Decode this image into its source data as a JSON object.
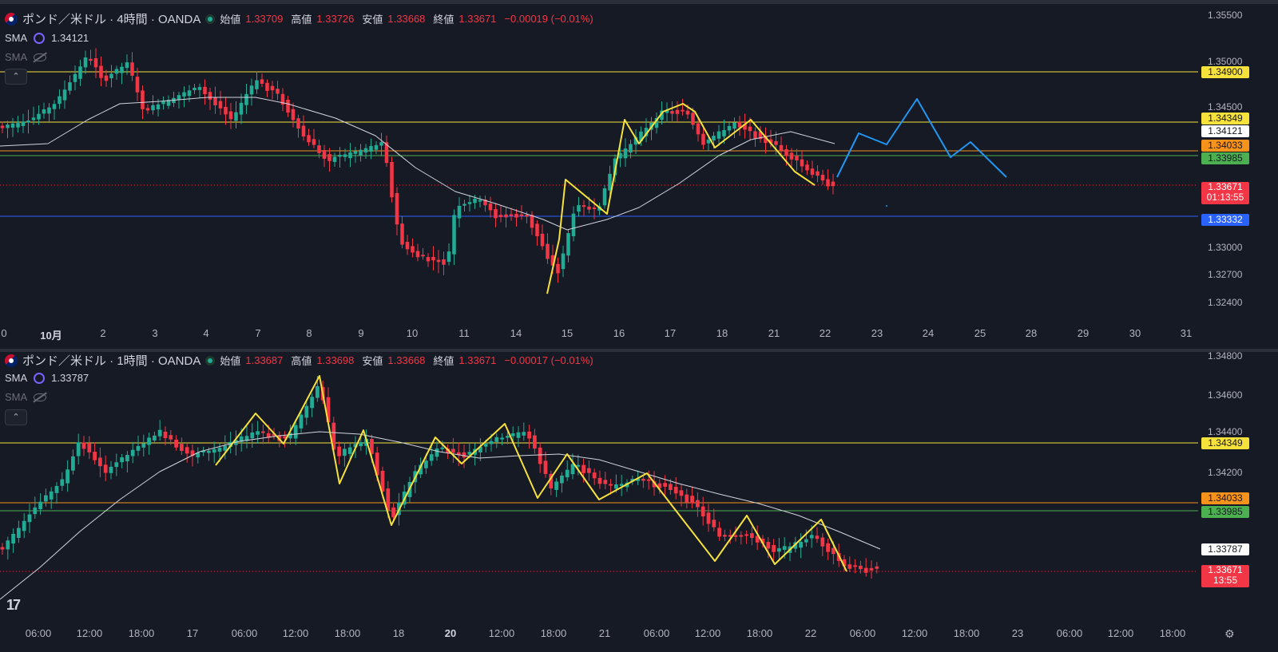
{
  "top": {
    "title": "ポンド／米ドル · 4時間 · OANDA",
    "ohlc": [
      {
        "k": "始値",
        "v": "1.33709"
      },
      {
        "k": "高値",
        "v": "1.33726"
      },
      {
        "k": "安値",
        "v": "1.33668"
      },
      {
        "k": "終値",
        "v": "1.33671"
      }
    ],
    "change": "−0.00019 (−0.01%)",
    "sma1_label": "SMA",
    "sma1_value": "1.34121",
    "sma2_label": "SMA",
    "collapse": "⌃",
    "yaxis": [
      "1.35500",
      "1.35000",
      "1.34500",
      "1.33000",
      "1.32700",
      "1.32400"
    ],
    "xaxis": [
      "0",
      "10月",
      "2",
      "3",
      "4",
      "7",
      "8",
      "9",
      "10",
      "11",
      "14",
      "15",
      "16",
      "17",
      "18",
      "21",
      "22",
      "23",
      "24",
      "25",
      "28",
      "29",
      "30",
      "31"
    ],
    "tags": {
      "t1": "1.34900",
      "t2": "1.34349",
      "t3": "1.34121",
      "t4": "1.34033",
      "t5": "1.33985",
      "t6": "1.33671",
      "t6b": "01:13:55",
      "t7": "1.33332"
    }
  },
  "bottom": {
    "title": "ポンド／米ドル · 1時間 · OANDA",
    "ohlc": [
      {
        "k": "始値",
        "v": "1.33687"
      },
      {
        "k": "高値",
        "v": "1.33698"
      },
      {
        "k": "安値",
        "v": "1.33668"
      },
      {
        "k": "終値",
        "v": "1.33671"
      }
    ],
    "change": "−0.00017 (−0.01%)",
    "sma1_label": "SMA",
    "sma1_value": "1.33787",
    "sma2_label": "SMA",
    "collapse": "⌃",
    "yaxis": [
      "1.34800",
      "1.34600",
      "1.34400",
      "1.34200"
    ],
    "xaxis": [
      "06:00",
      "12:00",
      "18:00",
      "17",
      "06:00",
      "12:00",
      "18:00",
      "18",
      "20",
      "12:00",
      "18:00",
      "21",
      "06:00",
      "12:00",
      "18:00",
      "22",
      "06:00",
      "12:00",
      "18:00",
      "23",
      "06:00",
      "12:00",
      "18:00"
    ],
    "tags": {
      "t1": "1.34349",
      "t2": "1.34033",
      "t3": "1.33985",
      "t4": "1.33787",
      "t5": "1.33671",
      "t5b": "13:55"
    }
  },
  "logo": "17",
  "settings_icon": "gear-icon",
  "colors": {
    "bg": "#161a25",
    "up": "#22ab94",
    "down": "#f23645",
    "yellow_line": "#f7e13b",
    "orange_line": "#f7931a",
    "green_line": "#4caf50",
    "blue_line": "#2962ff",
    "forecast": "#2196f3"
  }
}
